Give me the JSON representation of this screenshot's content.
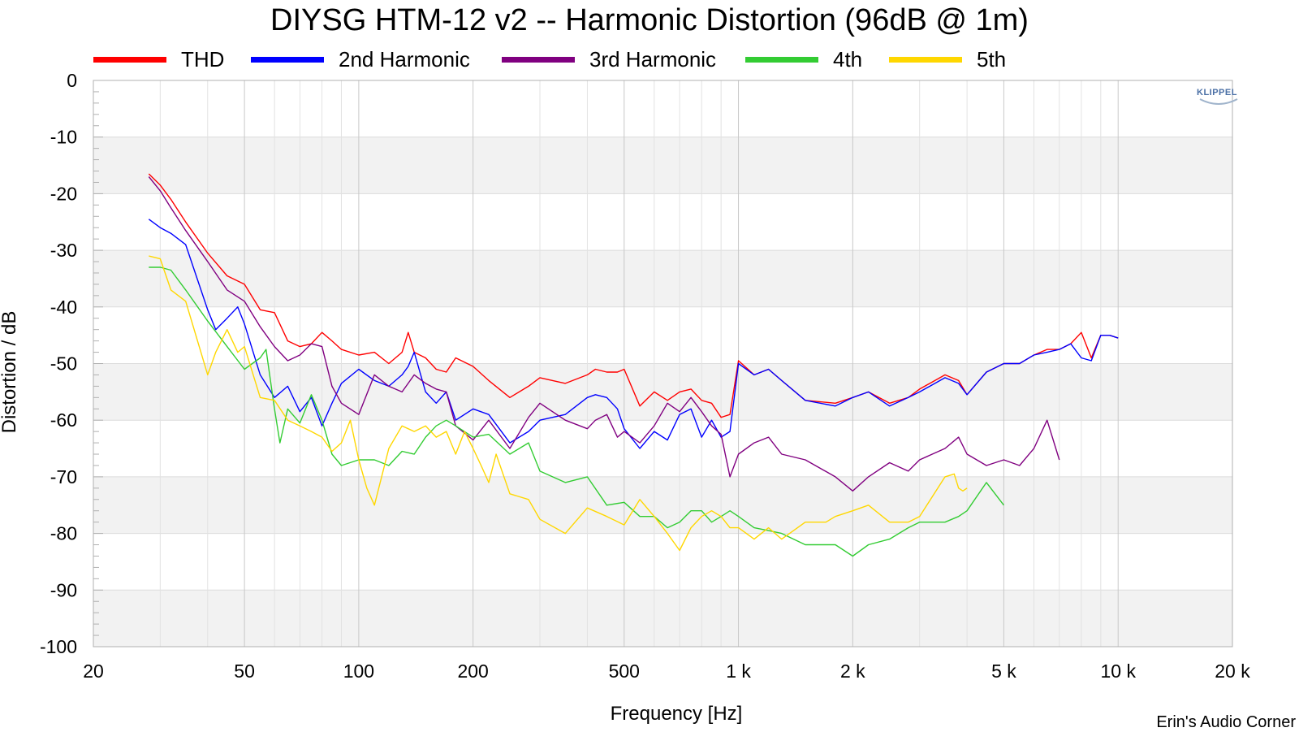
{
  "chart_data": {
    "type": "line",
    "title": "DIYSG HTM-12 v2 -- Harmonic Distortion (96dB @ 1m)",
    "xlabel": "Frequency [Hz]",
    "ylabel": "Distortion / dB",
    "x_scale": "log",
    "xlim": [
      20,
      20000
    ],
    "ylim": [
      -100,
      0
    ],
    "grid": true,
    "legend_position": "top",
    "x_ticks": [
      {
        "value": 20,
        "label": "20"
      },
      {
        "value": 50,
        "label": "50"
      },
      {
        "value": 100,
        "label": "100"
      },
      {
        "value": 200,
        "label": "200"
      },
      {
        "value": 500,
        "label": "500"
      },
      {
        "value": 1000,
        "label": "1 k"
      },
      {
        "value": 2000,
        "label": "2 k"
      },
      {
        "value": 5000,
        "label": "5 k"
      },
      {
        "value": 10000,
        "label": "10 k"
      },
      {
        "value": 20000,
        "label": "20 k"
      }
    ],
    "y_ticks": [
      {
        "value": 0,
        "label": "0"
      },
      {
        "value": -10,
        "label": "-10"
      },
      {
        "value": -20,
        "label": "-20"
      },
      {
        "value": -30,
        "label": "-30"
      },
      {
        "value": -40,
        "label": "-40"
      },
      {
        "value": -50,
        "label": "-50"
      },
      {
        "value": -60,
        "label": "-60"
      },
      {
        "value": -70,
        "label": "-70"
      },
      {
        "value": -80,
        "label": "-80"
      },
      {
        "value": -90,
        "label": "-90"
      },
      {
        "value": -100,
        "label": "-100"
      }
    ],
    "series": [
      {
        "name": "THD",
        "color": "#ff0000",
        "x": [
          28,
          30,
          32,
          35,
          40,
          45,
          50,
          55,
          60,
          65,
          70,
          75,
          80,
          85,
          90,
          100,
          110,
          120,
          130,
          135,
          140,
          150,
          160,
          170,
          180,
          200,
          220,
          250,
          280,
          300,
          350,
          400,
          420,
          450,
          480,
          500,
          550,
          600,
          650,
          700,
          750,
          800,
          850,
          900,
          950,
          1000,
          1100,
          1200,
          1300,
          1500,
          1800,
          2000,
          2200,
          2500,
          2800,
          3000,
          3500,
          3800,
          4000,
          4500,
          5000,
          5500,
          6000,
          6500,
          7000,
          7500,
          8000,
          8500,
          9000,
          9500,
          10000
        ],
        "y": [
          -16.5,
          -18.5,
          -21,
          -25,
          -30.5,
          -34.5,
          -36,
          -40.5,
          -41,
          -46,
          -47,
          -46.5,
          -44.5,
          -46,
          -47.5,
          -48.5,
          -48,
          -50,
          -48,
          -44.5,
          -48,
          -49,
          -51,
          -51.5,
          -49,
          -50.5,
          -53,
          -56,
          -54,
          -52.5,
          -53.5,
          -52,
          -51,
          -51.5,
          -51.5,
          -51,
          -57.5,
          -55,
          -56.5,
          -55,
          -54.5,
          -56.5,
          -57,
          -59.5,
          -59,
          -49.5,
          -52,
          -51,
          -53,
          -56.5,
          -57,
          -56,
          -55,
          -57,
          -56,
          -54.5,
          -52,
          -53,
          -55.5,
          -51.5,
          -50,
          -50,
          -48.5,
          -47.5,
          -47.5,
          -46.5,
          -44.5,
          -49,
          -45,
          -45,
          -45.5
        ]
      },
      {
        "name": "2nd Harmonic",
        "color": "#0000ff",
        "x": [
          28,
          30,
          32,
          35,
          40,
          42,
          45,
          48,
          50,
          55,
          60,
          65,
          70,
          75,
          80,
          85,
          90,
          100,
          110,
          120,
          130,
          135,
          140,
          150,
          160,
          170,
          180,
          200,
          220,
          250,
          280,
          300,
          350,
          400,
          420,
          450,
          480,
          500,
          550,
          600,
          650,
          700,
          750,
          800,
          850,
          900,
          950,
          1000,
          1100,
          1200,
          1300,
          1500,
          1800,
          2000,
          2200,
          2500,
          2800,
          3000,
          3500,
          3800,
          4000,
          4500,
          5000,
          5500,
          6000,
          6500,
          7000,
          7500,
          8000,
          8500,
          9000,
          9500,
          10000
        ],
        "y": [
          -24.5,
          -26,
          -27,
          -29,
          -40.5,
          -44,
          -42,
          -40,
          -43,
          -52,
          -56,
          -54,
          -58.5,
          -56,
          -61,
          -57,
          -53.5,
          -51,
          -53,
          -54,
          -52,
          -50.5,
          -48,
          -55,
          -57,
          -55,
          -60,
          -58,
          -59,
          -64,
          -62,
          -60,
          -59,
          -56,
          -55.5,
          -56,
          -58,
          -61.5,
          -65,
          -62,
          -63.5,
          -59,
          -58,
          -63,
          -60,
          -63,
          -62,
          -50,
          -52,
          -51,
          -53,
          -56.5,
          -57.5,
          -56,
          -55,
          -57.5,
          -56,
          -55,
          -52.5,
          -53.5,
          -55.5,
          -51.5,
          -50,
          -50,
          -48.5,
          -48,
          -47.5,
          -46.5,
          -49,
          -49.5,
          -45,
          -45,
          -45.5
        ]
      },
      {
        "name": "3rd Harmonic",
        "color": "#800080",
        "x": [
          28,
          30,
          32,
          35,
          40,
          45,
          50,
          55,
          60,
          65,
          70,
          75,
          80,
          85,
          90,
          100,
          110,
          120,
          130,
          140,
          150,
          160,
          170,
          180,
          200,
          220,
          250,
          280,
          300,
          350,
          400,
          420,
          450,
          480,
          500,
          550,
          600,
          650,
          700,
          750,
          800,
          850,
          900,
          950,
          1000,
          1100,
          1200,
          1300,
          1500,
          1800,
          2000,
          2200,
          2500,
          2800,
          3000,
          3500,
          3800,
          4000,
          4500,
          5000,
          5500,
          6000,
          6500,
          7000
        ],
        "y": [
          -17,
          -19.5,
          -22.5,
          -26.5,
          -32,
          -37,
          -39,
          -43.5,
          -47,
          -49.5,
          -48.5,
          -46.5,
          -47,
          -54,
          -57,
          -59,
          -52,
          -54,
          -55,
          -52,
          -53.5,
          -54.5,
          -55,
          -61,
          -63.5,
          -60,
          -65,
          -59.5,
          -57,
          -60,
          -61.5,
          -60,
          -59,
          -63,
          -62,
          -64,
          -61,
          -57,
          -58.5,
          -56,
          -58.5,
          -61,
          -62.5,
          -70,
          -66,
          -64,
          -63,
          -66,
          -67,
          -70,
          -72.5,
          -70,
          -67.5,
          -69,
          -67,
          -65,
          -63,
          -66,
          -68,
          -67,
          -68,
          -65,
          -60,
          -67
        ]
      },
      {
        "name": "4th",
        "color": "#33cc33",
        "x": [
          28,
          30,
          32,
          35,
          40,
          45,
          50,
          55,
          57,
          60,
          62,
          65,
          70,
          75,
          80,
          85,
          90,
          100,
          110,
          120,
          130,
          140,
          150,
          160,
          170,
          180,
          200,
          220,
          250,
          280,
          300,
          350,
          400,
          450,
          500,
          550,
          600,
          650,
          700,
          750,
          800,
          850,
          900,
          950,
          1000,
          1100,
          1200,
          1300,
          1500,
          1800,
          2000,
          2200,
          2500,
          2800,
          3000,
          3500,
          3800,
          4000,
          4500,
          5000
        ],
        "y": [
          -33,
          -33,
          -33.5,
          -37,
          -42.5,
          -47,
          -51,
          -49,
          -47.5,
          -58,
          -64,
          -58,
          -60.5,
          -55.5,
          -60,
          -66,
          -68,
          -67,
          -67,
          -68,
          -65.5,
          -66,
          -63,
          -61,
          -60,
          -61,
          -63,
          -62.5,
          -66,
          -64,
          -69,
          -71,
          -70,
          -75,
          -74.5,
          -77,
          -77,
          -79,
          -78,
          -76,
          -76,
          -78,
          -77,
          -76,
          -77,
          -79,
          -79.5,
          -80,
          -82,
          -82,
          -84,
          -82,
          -81,
          -79,
          -78,
          -78,
          -77,
          -76,
          -71,
          -75
        ]
      },
      {
        "name": "5th",
        "color": "#ffd700",
        "x": [
          28,
          30,
          32,
          35,
          40,
          42,
          45,
          48,
          50,
          55,
          60,
          65,
          70,
          75,
          80,
          85,
          90,
          95,
          100,
          105,
          110,
          120,
          130,
          140,
          150,
          160,
          170,
          180,
          190,
          200,
          210,
          220,
          230,
          250,
          280,
          300,
          350,
          400,
          450,
          500,
          550,
          600,
          650,
          700,
          750,
          800,
          850,
          900,
          950,
          1000,
          1100,
          1200,
          1300,
          1500,
          1700,
          1800,
          2000,
          2200,
          2500,
          2800,
          3000,
          3500,
          3700,
          3800,
          3900,
          4000
        ],
        "y": [
          -31,
          -31.5,
          -37,
          -39,
          -52,
          -48,
          -44,
          -48,
          -47,
          -56,
          -56.5,
          -60,
          -61,
          -62,
          -63,
          -65.5,
          -64,
          -60,
          -67,
          -72,
          -75,
          -65,
          -61,
          -62,
          -61,
          -63,
          -62,
          -66,
          -62,
          -65,
          -68,
          -71,
          -66,
          -73,
          -74,
          -77.5,
          -80,
          -75.5,
          -77,
          -78.5,
          -74,
          -77,
          -80,
          -83,
          -79,
          -77,
          -76,
          -77,
          -79,
          -79,
          -81,
          -79,
          -81,
          -78,
          -78,
          -77,
          -76,
          -75,
          -78,
          -78,
          -77,
          -70,
          -69.5,
          -72,
          -72.5,
          -72
        ]
      }
    ]
  },
  "legend": {
    "items": [
      {
        "label": "THD",
        "color": "#ff0000"
      },
      {
        "label": "2nd Harmonic",
        "color": "#0000ff"
      },
      {
        "label": "3rd Harmonic",
        "color": "#800080"
      },
      {
        "label": "4th",
        "color": "#33cc33"
      },
      {
        "label": "5th",
        "color": "#ffd700"
      }
    ]
  },
  "logo_text": "KLIPPEL",
  "watermark": "Erin's Audio Corner"
}
